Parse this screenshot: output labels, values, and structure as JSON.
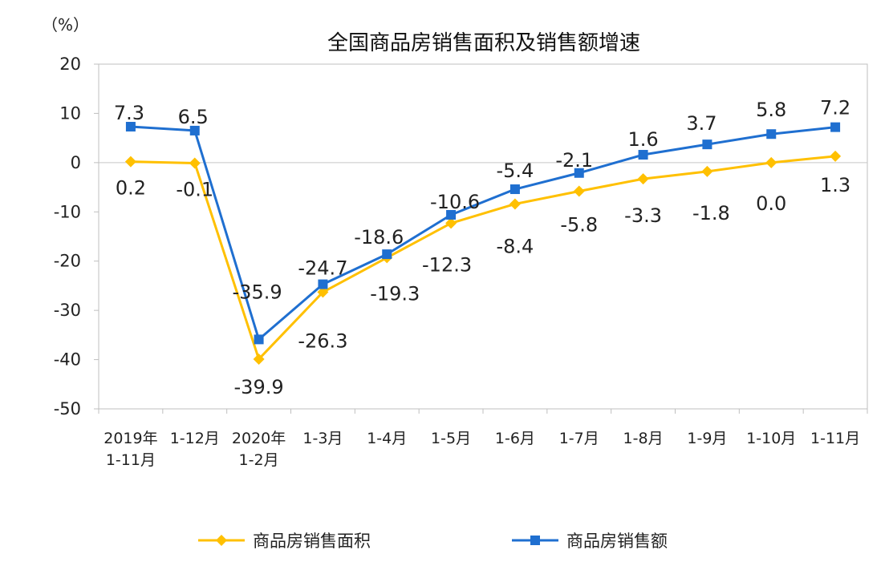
{
  "chart_data": {
    "type": "line",
    "title": "全国商品房销售面积及销售额增速",
    "unit_label": "（%）",
    "ylim": [
      -50,
      20
    ],
    "yticks": [
      20,
      10,
      0,
      -10,
      -20,
      -30,
      -40,
      -50
    ],
    "categories": [
      [
        "2019年",
        "1-11月"
      ],
      [
        "1-12月"
      ],
      [
        "2020年",
        "1-2月"
      ],
      [
        "1-3月"
      ],
      [
        "1-4月"
      ],
      [
        "1-5月"
      ],
      [
        "1-6月"
      ],
      [
        "1-7月"
      ],
      [
        "1-8月"
      ],
      [
        "1-9月"
      ],
      [
        "1-10月"
      ],
      [
        "1-11月"
      ]
    ],
    "series": [
      {
        "name": "商品房销售面积",
        "color": "#FFC000",
        "marker": "diamond",
        "values": [
          0.2,
          -0.1,
          -39.9,
          -26.3,
          -19.3,
          -12.3,
          -8.4,
          -5.8,
          -3.3,
          -1.8,
          0.0,
          1.3
        ],
        "labels": [
          "0.2",
          "-0.1",
          "-39.9",
          "-26.3",
          "-19.3",
          "-12.3",
          "-8.4",
          "-5.8",
          "-3.3",
          "-1.8",
          "0.0",
          "1.3"
        ]
      },
      {
        "name": "商品房销售额",
        "color": "#1F6FD0",
        "marker": "square",
        "values": [
          7.3,
          6.5,
          -35.9,
          -24.7,
          -18.6,
          -10.6,
          -5.4,
          -2.1,
          1.6,
          3.7,
          5.8,
          7.2
        ],
        "labels": [
          "7.3",
          "6.5",
          "-35.9",
          "-24.7",
          "-18.6",
          "-10.6",
          "-5.4",
          "-2.1",
          "1.6",
          "3.7",
          "5.8",
          "7.2"
        ]
      }
    ],
    "legend_position": "bottom",
    "grid": false
  }
}
